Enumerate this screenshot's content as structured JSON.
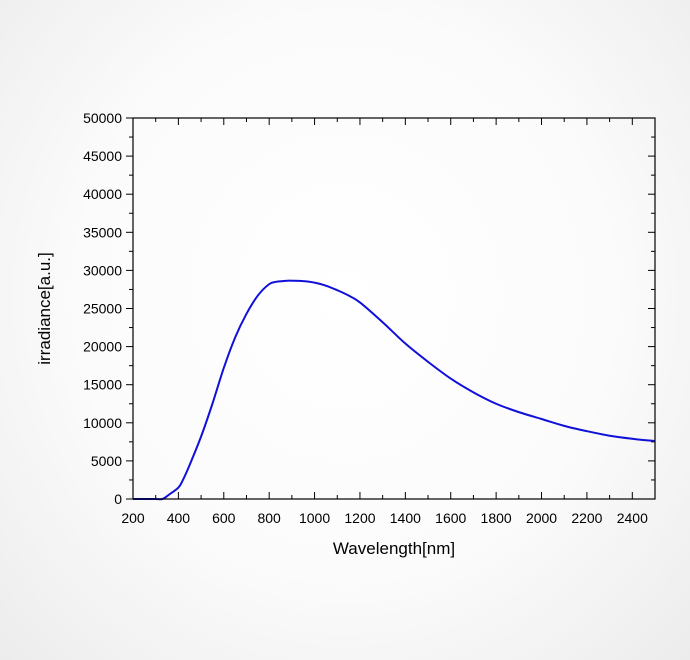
{
  "chart_data": {
    "type": "line",
    "title": "",
    "xlabel": "Wavelength[nm]",
    "ylabel": "irradiance[a.u.]",
    "xlim": [
      200,
      2500
    ],
    "ylim": [
      0,
      50000
    ],
    "x_ticks": [
      200,
      400,
      600,
      800,
      1000,
      1200,
      1400,
      1600,
      1800,
      2000,
      2200,
      2400
    ],
    "x_tick_labels": [
      "200",
      "400",
      "600",
      "800",
      "1000",
      "1200",
      "1400",
      "1600",
      "1800",
      "2000",
      "2200",
      "2400"
    ],
    "y_ticks": [
      0,
      5000,
      10000,
      15000,
      20000,
      25000,
      30000,
      35000,
      40000,
      45000,
      50000
    ],
    "y_tick_labels": [
      "0",
      "5000",
      "10000",
      "15000",
      "20000",
      "25000",
      "30000",
      "35000",
      "40000",
      "45000",
      "50000"
    ],
    "grid": false,
    "legend": "none",
    "series": [
      {
        "color": "#1010d8",
        "x": [
          200,
          300,
          330,
          360,
          400,
          420,
          450,
          500,
          550,
          600,
          650,
          700,
          750,
          800,
          830,
          860,
          880,
          900,
          950,
          1000,
          1050,
          1100,
          1150,
          1200,
          1300,
          1400,
          1500,
          1600,
          1700,
          1800,
          1900,
          2000,
          2100,
          2200,
          2300,
          2400,
          2500
        ],
        "y": [
          0,
          0,
          0,
          600,
          1500,
          2500,
          4500,
          8200,
          12500,
          17200,
          21200,
          24300,
          26700,
          28200,
          28500,
          28600,
          28650,
          28650,
          28600,
          28400,
          28000,
          27400,
          26700,
          25800,
          23200,
          20400,
          18000,
          15800,
          14000,
          12500,
          11400,
          10500,
          9600,
          8900,
          8300,
          7900,
          7600
        ]
      }
    ]
  }
}
